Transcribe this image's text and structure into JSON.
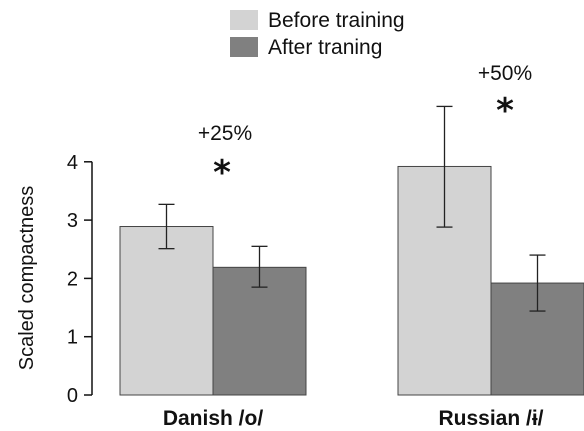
{
  "chart_data": {
    "type": "bar",
    "ylabel": "Scaled compactness",
    "xlabel": "",
    "ylim": [
      0,
      4
    ],
    "yticks": [
      "0",
      "1",
      "2",
      "3",
      "4"
    ],
    "categories": [
      "Danish /o/",
      "Russian /ɨ/"
    ],
    "series": [
      {
        "name": "Before training",
        "color": "#d3d3d3",
        "values": [
          2.89,
          3.92
        ],
        "err_low": [
          2.51,
          2.88
        ],
        "err_high": [
          3.27,
          4.95
        ]
      },
      {
        "name": "After traning",
        "color": "#808080",
        "values": [
          2.19,
          1.92
        ],
        "err_low": [
          1.85,
          1.44
        ],
        "err_high": [
          2.55,
          2.4
        ]
      }
    ],
    "annotations": [
      {
        "category": "Danish /o/",
        "text": "+25%",
        "marker": "*"
      },
      {
        "category": "Russian /ɨ/",
        "text": "+50%",
        "marker": "*"
      }
    ],
    "legend_position": "top-center",
    "grid": false
  }
}
